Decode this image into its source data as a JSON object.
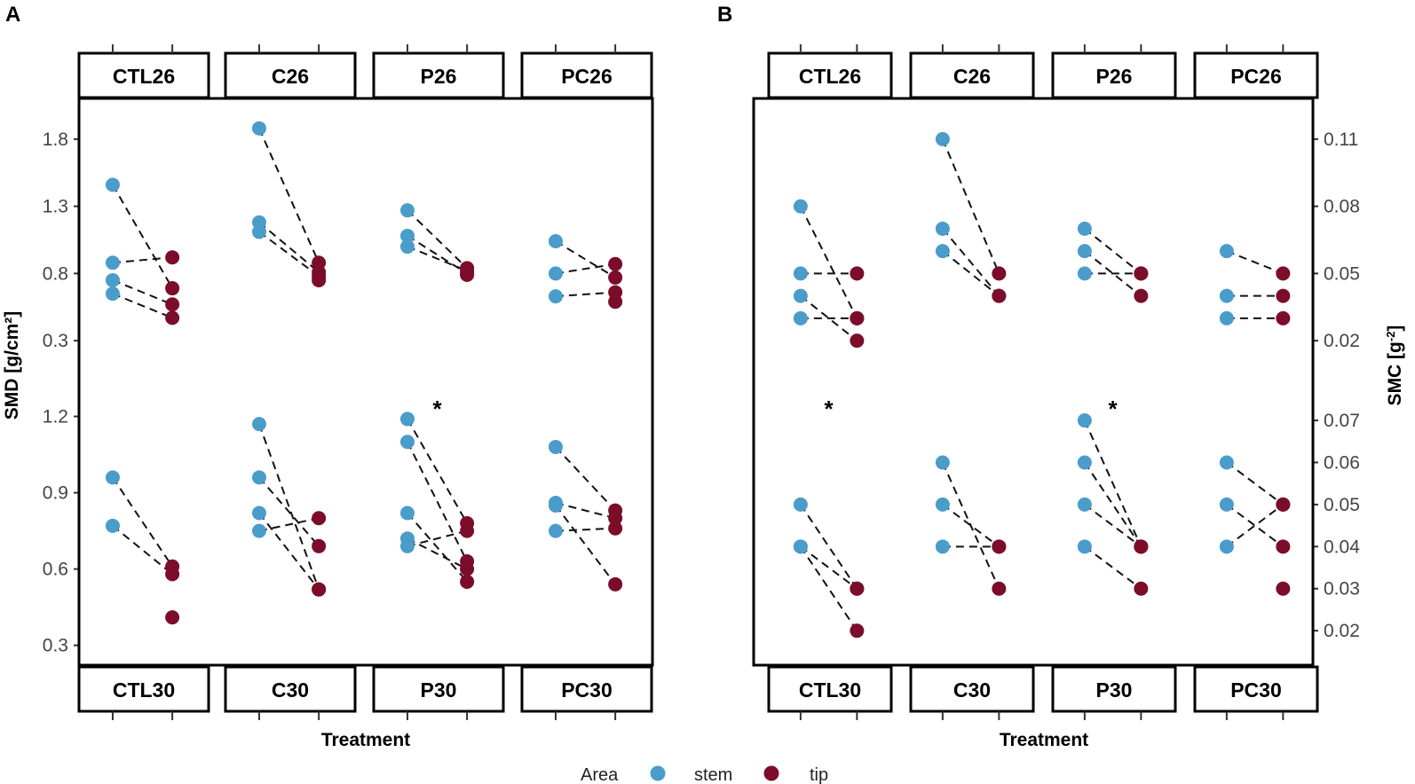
{
  "figure": {
    "colors": {
      "stem": "#4A9CCB",
      "tip": "#7B0D2A"
    },
    "legend": {
      "title": "Area",
      "stem_label": "stem",
      "tip_label": "tip"
    }
  },
  "chart_data": [
    {
      "type": "scatter",
      "panel_letter": "A",
      "xlabel": "Treatment",
      "ylabel": "SMD [g/cm²]",
      "y_axis_side": "left",
      "rows": [
        {
          "ylim": [
            0.05,
            2.05
          ],
          "yticks": [
            1.8,
            1.3,
            0.8,
            0.3
          ],
          "ytick_labels": [
            "1.8",
            "1.3",
            "0.8",
            "0.3"
          ],
          "facets": [
            {
              "label": "CTL26",
              "pairs": [
                [
                  1.46,
                  0.69
                ],
                [
                  0.88,
                  0.92
                ],
                [
                  0.75,
                  0.57
                ],
                [
                  0.65,
                  0.47
                ]
              ],
              "star": false
            },
            {
              "label": "C26",
              "pairs": [
                [
                  1.88,
                  0.88
                ],
                [
                  1.18,
                  0.81
                ],
                [
                  1.11,
                  0.78
                ],
                [
                  null,
                  0.75
                ]
              ],
              "star": false
            },
            {
              "label": "P26",
              "pairs": [
                [
                  1.27,
                  0.84
                ],
                [
                  1.08,
                  0.8
                ],
                [
                  1.0,
                  0.82
                ],
                [
                  null,
                  0.79
                ]
              ],
              "star": false
            },
            {
              "label": "PC26",
              "pairs": [
                [
                  1.04,
                  0.77
                ],
                [
                  0.8,
                  0.87
                ],
                [
                  0.63,
                  0.66
                ],
                [
                  null,
                  0.59
                ]
              ],
              "star": false
            }
          ]
        },
        {
          "ylim": [
            0.25,
            1.31
          ],
          "yticks": [
            1.2,
            0.9,
            0.6,
            0.3
          ],
          "ytick_labels": [
            "1.2",
            "0.9",
            "0.6",
            "0.3"
          ],
          "facets": [
            {
              "label": "CTL30",
              "pairs": [
                [
                  0.96,
                  0.61
                ],
                [
                  0.77,
                  0.58
                ],
                [
                  null,
                  0.41
                ]
              ],
              "star": false
            },
            {
              "label": "C30",
              "pairs": [
                [
                  1.17,
                  0.52
                ],
                [
                  0.96,
                  0.69
                ],
                [
                  0.82,
                  0.52
                ],
                [
                  0.75,
                  0.8
                ]
              ],
              "star": false
            },
            {
              "label": "P30",
              "pairs": [
                [
                  1.19,
                  0.78
                ],
                [
                  1.1,
                  0.63
                ],
                [
                  0.82,
                  0.55
                ],
                [
                  0.72,
                  0.6
                ],
                [
                  0.69,
                  0.75
                ]
              ],
              "star": true
            },
            {
              "label": "PC30",
              "pairs": [
                [
                  1.08,
                  0.83
                ],
                [
                  0.86,
                  0.8
                ],
                [
                  0.85,
                  0.54
                ],
                [
                  0.75,
                  0.76
                ]
              ],
              "star": false
            }
          ]
        }
      ]
    },
    {
      "type": "scatter",
      "panel_letter": "B",
      "xlabel": "Treatment",
      "ylabel": "SMC [g-2]",
      "y_axis_side": "right",
      "rows": [
        {
          "ylim": [
            0.005,
            0.125
          ],
          "yticks": [
            0.11,
            0.08,
            0.05,
            0.02
          ],
          "ytick_labels": [
            "0.11",
            "0.08",
            "0.05",
            "0.02"
          ],
          "facets": [
            {
              "label": "CTL26",
              "pairs": [
                [
                  0.08,
                  0.03
                ],
                [
                  0.05,
                  0.05
                ],
                [
                  0.04,
                  0.02
                ],
                [
                  0.03,
                  0.03
                ]
              ],
              "star": false
            },
            {
              "label": "C26",
              "pairs": [
                [
                  0.11,
                  0.05
                ],
                [
                  0.07,
                  0.04
                ],
                [
                  0.06,
                  0.04
                ]
              ],
              "star": false
            },
            {
              "label": "P26",
              "pairs": [
                [
                  0.07,
                  0.05
                ],
                [
                  0.06,
                  0.04
                ],
                [
                  0.05,
                  0.05
                ]
              ],
              "star": false
            },
            {
              "label": "PC26",
              "pairs": [
                [
                  0.06,
                  0.05
                ],
                [
                  0.04,
                  0.04
                ],
                [
                  0.03,
                  0.03
                ]
              ],
              "star": false
            }
          ]
        },
        {
          "ylim": [
            0.0135,
            0.0776
          ],
          "yticks": [
            0.07,
            0.06,
            0.05,
            0.04,
            0.03,
            0.02
          ],
          "ytick_labels": [
            "0.07",
            "0.06",
            "0.05",
            "0.04",
            "0.03",
            "0.02"
          ],
          "facets": [
            {
              "label": "CTL30",
              "pairs": [
                [
                  0.05,
                  0.03
                ],
                [
                  0.04,
                  0.02
                ],
                [
                  0.04,
                  0.03
                ]
              ],
              "star": true
            },
            {
              "label": "C30",
              "pairs": [
                [
                  0.06,
                  0.03
                ],
                [
                  0.05,
                  0.04
                ],
                [
                  0.04,
                  0.04
                ]
              ],
              "star": false
            },
            {
              "label": "P30",
              "pairs": [
                [
                  0.07,
                  0.04
                ],
                [
                  0.06,
                  0.04
                ],
                [
                  0.05,
                  0.04
                ],
                [
                  0.04,
                  0.03
                ]
              ],
              "star": true
            },
            {
              "label": "PC30",
              "pairs": [
                [
                  0.06,
                  0.05
                ],
                [
                  0.05,
                  0.04
                ],
                [
                  0.04,
                  0.05
                ],
                [
                  null,
                  0.03
                ]
              ],
              "star": false
            }
          ]
        }
      ]
    }
  ]
}
